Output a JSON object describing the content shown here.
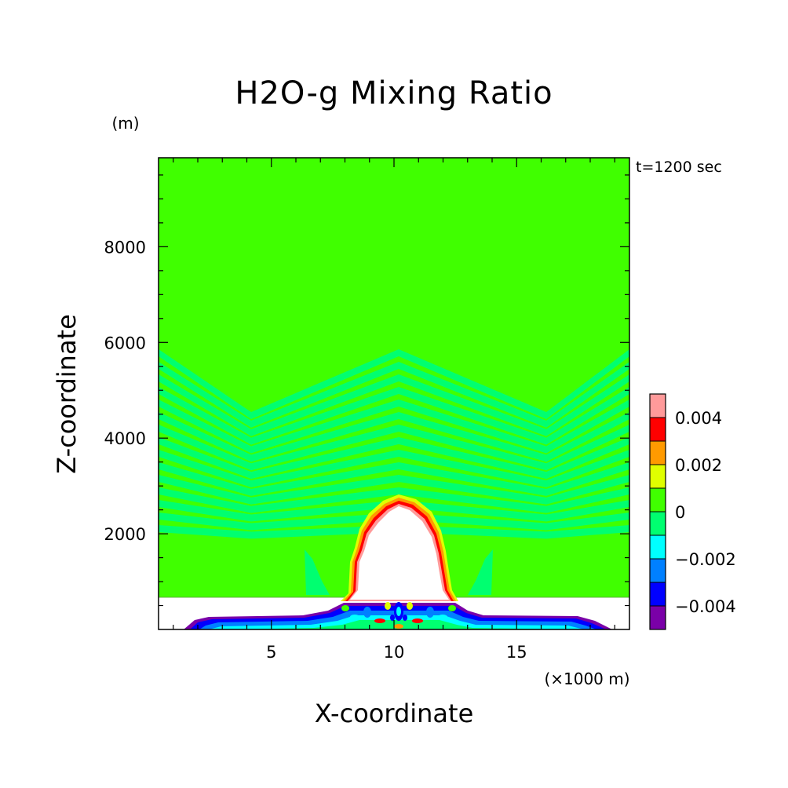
{
  "chart_data": {
    "type": "heatmap",
    "title": "H2O-g Mixing Ratio",
    "xlabel": "X-coordinate",
    "ylabel": "Z-coordinate",
    "x_unit": "(×1000 m)",
    "y_unit": "(m)",
    "time_label": "t=1200 sec",
    "xlim": [
      0.4,
      19.6
    ],
    "ylim": [
      0,
      9860
    ],
    "x_ticks": [
      5,
      10,
      15
    ],
    "x_tick_labels": [
      "5",
      "10",
      "15"
    ],
    "y_ticks": [
      2000,
      4000,
      6000,
      8000
    ],
    "y_tick_labels": [
      "2000",
      "4000",
      "6000",
      "8000"
    ],
    "colorbar": {
      "levels": [
        -0.005,
        -0.004,
        -0.003,
        -0.002,
        -0.001,
        0,
        0.001,
        0.002,
        0.003,
        0.004,
        0.005
      ],
      "colors": [
        "#7a00a8",
        "#0000ff",
        "#0080ff",
        "#00ffff",
        "#00ff70",
        "#40ff00",
        "#e0ff00",
        "#ff9a00",
        "#ff0000",
        "#ff9a9a"
      ],
      "tick_values": [
        0.004,
        0.002,
        0,
        -0.002,
        -0.004
      ],
      "tick_labels": [
        "0.004",
        "0.002",
        "0",
        "−0.002",
        "−0.004"
      ]
    },
    "background_value_range": [
      0,
      0.001
    ],
    "features": [
      {
        "name": "wave-bands",
        "value_range": [
          -0.001,
          0
        ],
        "z_range": [
          1900,
          5950
        ]
      },
      {
        "name": "thermal-dome",
        "x_range": [
          8.0,
          12.7
        ],
        "z_range": [
          650,
          2850
        ],
        "values": "undefined-interior"
      },
      {
        "name": "lower-layer",
        "z_range": [
          0,
          680
        ],
        "values": "undefined"
      },
      {
        "name": "surface-layer",
        "x_range": [
          1.5,
          19.0
        ],
        "z_range": [
          0,
          280
        ],
        "value_range": [
          -0.005,
          0.005
        ]
      }
    ],
    "grid": false
  }
}
